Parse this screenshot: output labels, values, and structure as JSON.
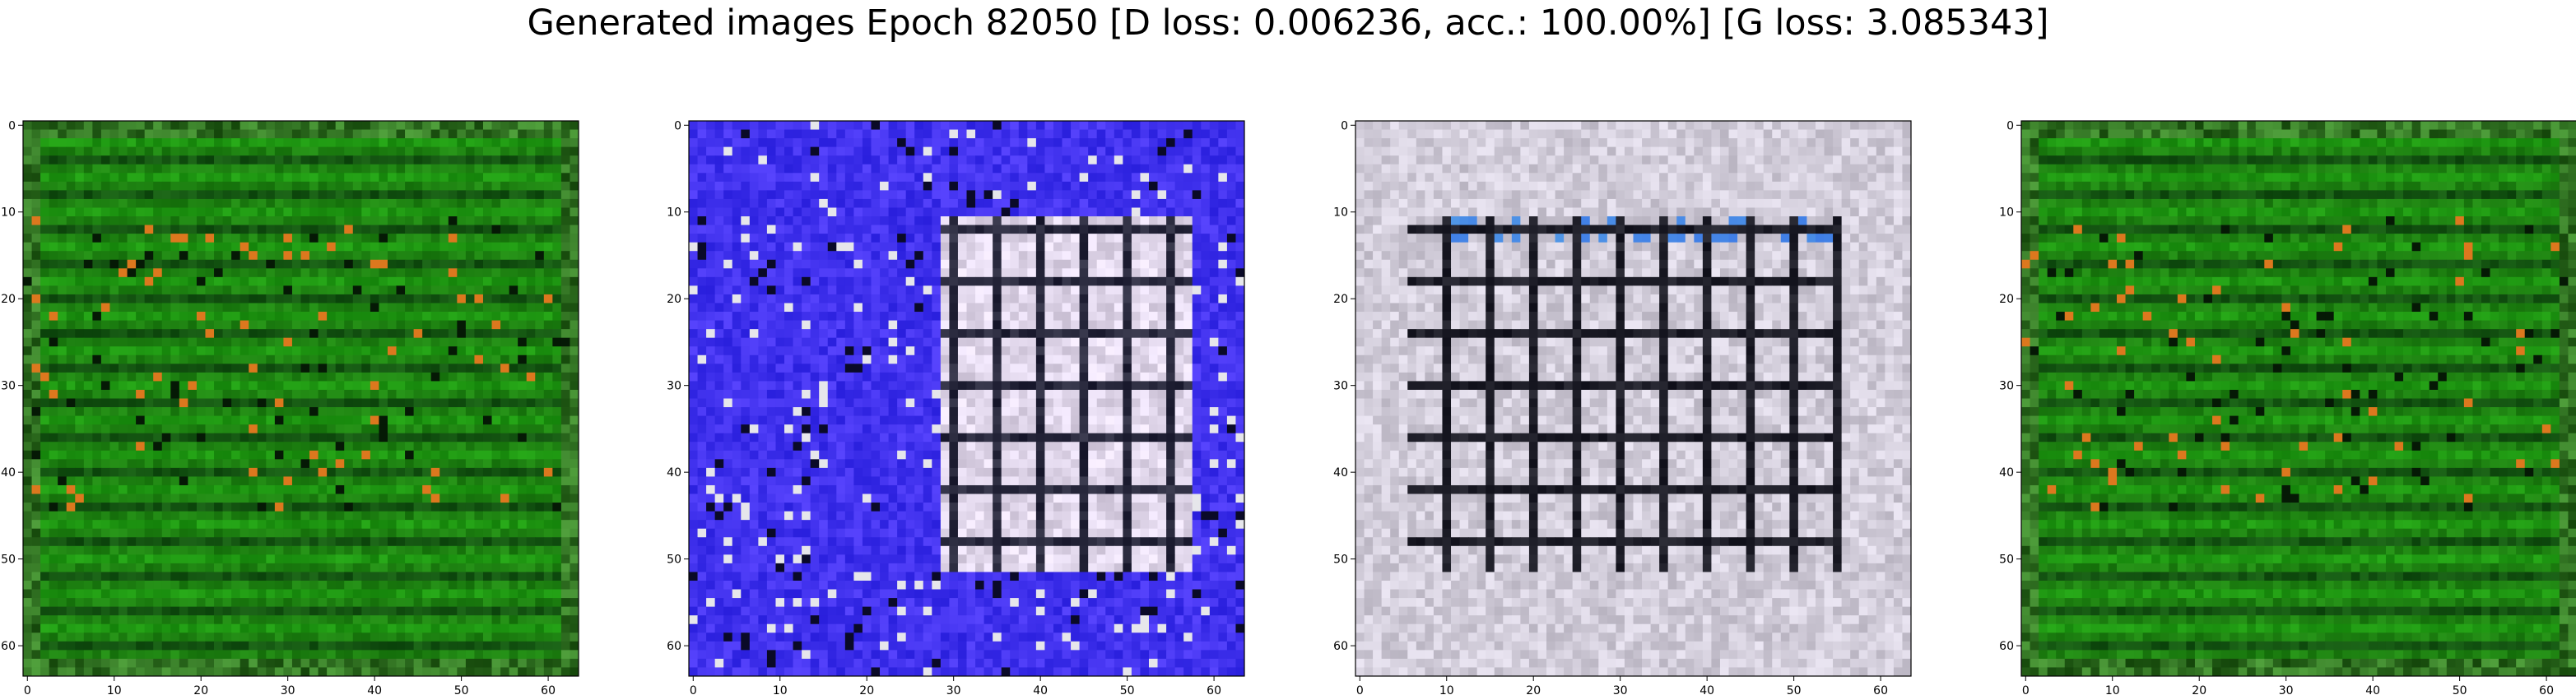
{
  "suptitle": "Generated images Epoch 82050 [D loss: 0.006236, acc.: 100.00%] [G loss: 3.085343]",
  "chart_data": [
    {
      "type": "heatmap",
      "title": "",
      "description_style": "green",
      "xlim": [
        -0.5,
        63.5
      ],
      "ylim": [
        63.5,
        -0.5
      ],
      "xticks": [
        0,
        10,
        20,
        30,
        40,
        50,
        60
      ],
      "yticks": [
        0,
        10,
        20,
        30,
        40,
        50,
        60
      ],
      "xlabel": "",
      "ylabel": "",
      "base_color": "#1f7a10",
      "accent_color": "#e07020"
    },
    {
      "type": "heatmap",
      "title": "",
      "description_style": "blue",
      "xlim": [
        -0.5,
        63.5
      ],
      "ylim": [
        63.5,
        -0.5
      ],
      "xticks": [
        0,
        10,
        20,
        30,
        40,
        50,
        60
      ],
      "yticks": [
        0,
        10,
        20,
        30,
        40,
        50,
        60
      ],
      "xlabel": "",
      "ylabel": "",
      "base_color": "#3b2ef0",
      "accent_color": "#e6e4ec"
    },
    {
      "type": "heatmap",
      "title": "",
      "description_style": "gray",
      "xlim": [
        -0.5,
        63.5
      ],
      "ylim": [
        63.5,
        -0.5
      ],
      "xticks": [
        0,
        10,
        20,
        30,
        40,
        50,
        60
      ],
      "yticks": [
        0,
        10,
        20,
        30,
        40,
        50,
        60
      ],
      "xlabel": "",
      "ylabel": "",
      "base_color": "#c9c6d2",
      "accent_color": "#0a0a14"
    },
    {
      "type": "heatmap",
      "title": "",
      "description_style": "green",
      "xlim": [
        -0.5,
        63.5
      ],
      "ylim": [
        63.5,
        -0.5
      ],
      "xticks": [
        0,
        10,
        20,
        30,
        40,
        50,
        60
      ],
      "yticks": [
        0,
        10,
        20,
        30,
        40,
        50,
        60
      ],
      "xlabel": "",
      "ylabel": "",
      "base_color": "#1f8a12",
      "accent_color": "#d88a30"
    }
  ]
}
